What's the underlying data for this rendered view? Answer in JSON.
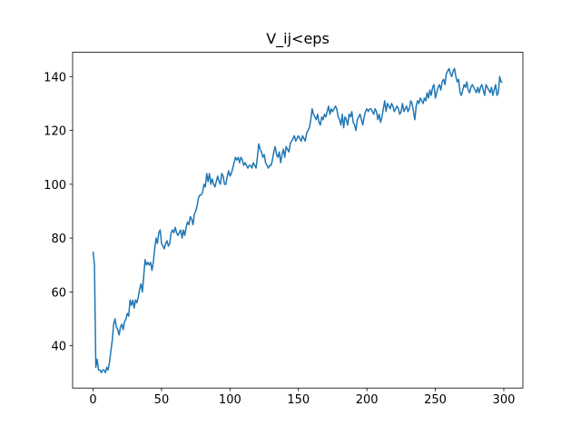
{
  "chart_data": {
    "type": "line",
    "title": "V_ij<eps",
    "x": [
      0,
      1,
      2,
      3,
      4,
      5,
      6,
      7,
      8,
      9,
      10,
      11,
      12,
      13,
      14,
      15,
      16,
      17,
      18,
      19,
      20,
      21,
      22,
      23,
      24,
      25,
      26,
      27,
      28,
      29,
      30,
      31,
      32,
      33,
      34,
      35,
      36,
      37,
      38,
      39,
      40,
      41,
      42,
      43,
      44,
      45,
      46,
      47,
      48,
      49,
      50,
      51,
      52,
      53,
      54,
      55,
      56,
      57,
      58,
      59,
      60,
      61,
      62,
      63,
      64,
      65,
      66,
      67,
      68,
      69,
      70,
      71,
      72,
      73,
      74,
      75,
      76,
      77,
      78,
      79,
      80,
      81,
      82,
      83,
      84,
      85,
      86,
      87,
      88,
      89,
      90,
      91,
      92,
      93,
      94,
      95,
      96,
      97,
      98,
      99,
      100,
      101,
      102,
      103,
      104,
      105,
      106,
      107,
      108,
      109,
      110,
      111,
      112,
      113,
      114,
      115,
      116,
      117,
      118,
      119,
      120,
      121,
      122,
      123,
      124,
      125,
      126,
      127,
      128,
      129,
      130,
      131,
      132,
      133,
      134,
      135,
      136,
      137,
      138,
      139,
      140,
      141,
      142,
      143,
      144,
      145,
      146,
      147,
      148,
      149,
      150,
      151,
      152,
      153,
      154,
      155,
      156,
      157,
      158,
      159,
      160,
      161,
      162,
      163,
      164,
      165,
      166,
      167,
      168,
      169,
      170,
      171,
      172,
      173,
      174,
      175,
      176,
      177,
      178,
      179,
      180,
      181,
      182,
      183,
      184,
      185,
      186,
      187,
      188,
      189,
      190,
      191,
      192,
      193,
      194,
      195,
      196,
      197,
      198,
      199,
      200,
      201,
      202,
      203,
      204,
      205,
      206,
      207,
      208,
      209,
      210,
      211,
      212,
      213,
      214,
      215,
      216,
      217,
      218,
      219,
      220,
      221,
      222,
      223,
      224,
      225,
      226,
      227,
      228,
      229,
      230,
      231,
      232,
      233,
      234,
      235,
      236,
      237,
      238,
      239,
      240,
      241,
      242,
      243,
      244,
      245,
      246,
      247,
      248,
      249,
      250,
      251,
      252,
      253,
      254,
      255,
      256,
      257,
      258,
      259,
      260,
      261,
      262,
      263,
      264,
      265,
      266,
      267,
      268,
      269,
      270,
      271,
      272,
      273,
      274,
      275,
      276,
      277,
      278,
      279,
      280,
      281,
      282,
      283,
      284,
      285,
      286,
      287,
      288,
      289,
      290,
      291,
      292,
      293,
      294,
      295,
      296,
      297,
      298,
      299
    ],
    "series": [
      {
        "color": "#1f77b4",
        "values": [
          75,
          70,
          32,
          35,
          31,
          31,
          30,
          31,
          31,
          30,
          32,
          31,
          34,
          38,
          42,
          48,
          50,
          47,
          46,
          44,
          47,
          48,
          46,
          49,
          50,
          52,
          51,
          57,
          55,
          57,
          54,
          57,
          56,
          58,
          61,
          63,
          60,
          66,
          72,
          70,
          71,
          70,
          71,
          68,
          71,
          76,
          80,
          78,
          82,
          83,
          78,
          77,
          76,
          78,
          79,
          77,
          78,
          82,
          83,
          82,
          84,
          82,
          81,
          82,
          83,
          80,
          83,
          81,
          84,
          86,
          85,
          88,
          87,
          85,
          89,
          90,
          92,
          95,
          96,
          96,
          97,
          100,
          99,
          104,
          101,
          104,
          100,
          102,
          100,
          99,
          101,
          103,
          101,
          100,
          104,
          103,
          100,
          100,
          103,
          105,
          103,
          104,
          106,
          108,
          110,
          109,
          110,
          108,
          110,
          109,
          107,
          108,
          107,
          106,
          107,
          107,
          106,
          108,
          107,
          106,
          110,
          115,
          113,
          112,
          110,
          111,
          108,
          107,
          106,
          107,
          107,
          109,
          112,
          114,
          111,
          110,
          112,
          108,
          111,
          113,
          110,
          114,
          113,
          112,
          115,
          116,
          117,
          118,
          116,
          117,
          118,
          117,
          116,
          118,
          117,
          116,
          119,
          120,
          121,
          124,
          128,
          126,
          125,
          124,
          126,
          123,
          122,
          125,
          124,
          126,
          125,
          127,
          129,
          126,
          128,
          127,
          128,
          129,
          128,
          125,
          124,
          122,
          126,
          121,
          125,
          124,
          122,
          126,
          125,
          127,
          123,
          122,
          120,
          124,
          125,
          126,
          124,
          122,
          125,
          127,
          128,
          127,
          128,
          128,
          127,
          126,
          128,
          127,
          124,
          126,
          123,
          125,
          128,
          131,
          127,
          130,
          129,
          128,
          130,
          129,
          127,
          128,
          129,
          128,
          126,
          127,
          130,
          127,
          128,
          129,
          127,
          128,
          131,
          130,
          127,
          124,
          129,
          131,
          130,
          132,
          131,
          130,
          132,
          131,
          134,
          132,
          135,
          133,
          136,
          137,
          132,
          134,
          136,
          137,
          135,
          138,
          139,
          137,
          141,
          142,
          143,
          141,
          140,
          142,
          143,
          140,
          138,
          139,
          134,
          133,
          135,
          137,
          136,
          138,
          135,
          134,
          136,
          137,
          136,
          135,
          134,
          136,
          134,
          136,
          137,
          135,
          133,
          137,
          136,
          135,
          134,
          136,
          133,
          135,
          137,
          133,
          134,
          140,
          138,
          138
        ]
      }
    ],
    "xlim": [
      -14.95,
      313.95
    ],
    "ylim": [
      24.3,
      149
    ],
    "xticks": [
      0,
      50,
      100,
      150,
      200,
      250,
      300
    ],
    "yticks": [
      40,
      60,
      80,
      100,
      120,
      140
    ]
  }
}
